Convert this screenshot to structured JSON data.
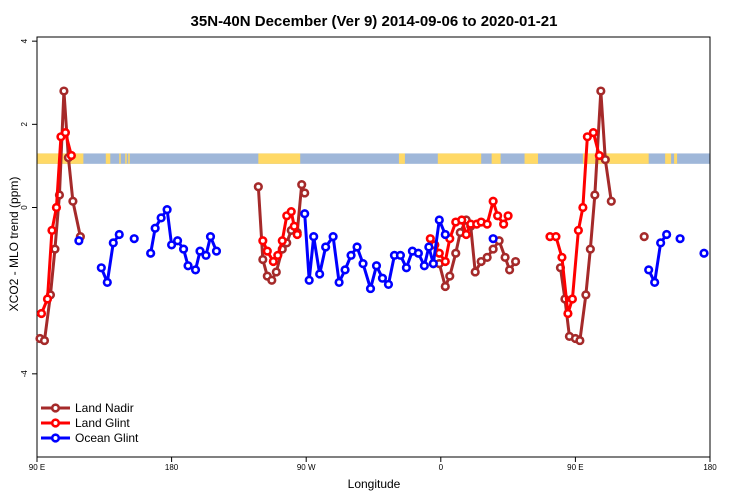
{
  "chart_data": {
    "type": "line",
    "title": "35N-40N December (Ver 9)   2014-09-06 to 2020-01-21",
    "xlabel": "Longitude",
    "ylabel": "XCO2 - MLO trend (ppm)",
    "xlim": [
      90,
      540
    ],
    "ylim": [
      -6,
      4.1
    ],
    "x_ticks": [
      {
        "value": 90,
        "label": "90 E"
      },
      {
        "value": 180,
        "label": "180"
      },
      {
        "value": 270,
        "label": "90 W"
      },
      {
        "value": 360,
        "label": "0"
      },
      {
        "value": 450,
        "label": "90 E"
      },
      {
        "value": 540,
        "label": "180"
      }
    ],
    "y_ticks": [
      {
        "value": 4,
        "label": "4"
      },
      {
        "value": 2,
        "label": "2"
      },
      {
        "value": 0,
        "label": "0"
      },
      {
        "value": -4,
        "label": "-4"
      }
    ],
    "legend_position": "bottom-left",
    "colors": {
      "land_nadir": "#a52a2a",
      "land_glint": "#ff0000",
      "ocean_glint": "#0000ff",
      "band_land": "#ffd966",
      "band_ocean": "#9fb7d9"
    },
    "surface_band": {
      "y_range": [
        1.05,
        1.3
      ],
      "land_segments": [
        [
          90,
          121
        ],
        [
          136,
          139
        ],
        [
          145,
          146
        ],
        [
          149,
          150
        ],
        [
          151,
          152
        ],
        [
          238,
          266
        ],
        [
          332,
          336
        ],
        [
          358,
          387
        ],
        [
          394,
          400
        ],
        [
          416,
          425
        ],
        [
          455,
          499
        ],
        [
          510,
          514
        ],
        [
          516,
          518
        ],
        [
          540,
          541
        ]
      ]
    },
    "series": [
      {
        "name": "Land Nadir",
        "key": "land_nadir",
        "segments": [
          [
            [
              92,
              -3.15
            ],
            [
              95,
              -3.2
            ],
            [
              99,
              -2.1
            ],
            [
              102,
              -1.0
            ],
            [
              105,
              0.3
            ],
            [
              108,
              2.8
            ],
            [
              111,
              1.2
            ],
            [
              114,
              0.15
            ],
            [
              119,
              -0.7
            ]
          ],
          [
            [
              238,
              0.5
            ],
            [
              241,
              -1.25
            ],
            [
              244,
              -1.65
            ],
            [
              247,
              -1.75
            ],
            [
              250,
              -1.55
            ],
            [
              254,
              -1.0
            ],
            [
              257,
              -0.85
            ],
            [
              260,
              -0.55
            ],
            [
              264,
              -0.6
            ],
            [
              267,
              0.55
            ],
            [
              269,
              0.35
            ]
          ],
          [
            [
              355,
              -1.35
            ],
            [
              359,
              -1.35
            ],
            [
              363,
              -1.9
            ],
            [
              366,
              -1.65
            ],
            [
              370,
              -1.1
            ],
            [
              373,
              -0.6
            ],
            [
              377,
              -0.3
            ],
            [
              380,
              -0.45
            ],
            [
              383,
              -1.55
            ],
            [
              387,
              -1.3
            ],
            [
              391,
              -1.2
            ],
            [
              395,
              -1.0
            ],
            [
              399,
              -0.8
            ],
            [
              403,
              -1.2
            ],
            [
              406,
              -1.5
            ],
            [
              410,
              -1.3
            ]
          ],
          [
            [
              440,
              -1.45
            ],
            [
              443,
              -2.2
            ],
            [
              446,
              -3.1
            ],
            [
              450,
              -3.15
            ],
            [
              453,
              -3.2
            ],
            [
              457,
              -2.1
            ],
            [
              460,
              -1.0
            ],
            [
              463,
              0.3
            ],
            [
              467,
              2.8
            ],
            [
              470,
              1.15
            ],
            [
              474,
              0.15
            ]
          ],
          [
            [
              496,
              -0.7
            ]
          ]
        ]
      },
      {
        "name": "Land Glint",
        "key": "land_glint",
        "segments": [
          [
            [
              93,
              -2.55
            ],
            [
              97,
              -2.2
            ],
            [
              100,
              -0.55
            ],
            [
              103,
              0.0
            ],
            [
              106,
              1.7
            ],
            [
              109,
              1.8
            ],
            [
              113,
              1.25
            ]
          ],
          [
            [
              241,
              -0.8
            ],
            [
              244,
              -1.05
            ],
            [
              248,
              -1.3
            ],
            [
              251,
              -1.15
            ],
            [
              254,
              -0.8
            ],
            [
              257,
              -0.2
            ],
            [
              260,
              -0.1
            ],
            [
              262,
              -0.45
            ],
            [
              264,
              -0.65
            ]
          ],
          [
            [
              353,
              -0.75
            ],
            [
              356,
              -0.9
            ],
            [
              359,
              -1.1
            ],
            [
              363,
              -1.3
            ],
            [
              366,
              -0.75
            ],
            [
              370,
              -0.35
            ],
            [
              374,
              -0.3
            ],
            [
              377,
              -0.65
            ],
            [
              380,
              -0.4
            ],
            [
              384,
              -0.4
            ],
            [
              387,
              -0.35
            ],
            [
              391,
              -0.4
            ],
            [
              395,
              0.15
            ],
            [
              398,
              -0.2
            ],
            [
              402,
              -0.4
            ],
            [
              405,
              -0.2
            ]
          ],
          [
            [
              433,
              -0.7
            ],
            [
              437,
              -0.7
            ],
            [
              441,
              -1.2
            ],
            [
              445,
              -2.55
            ],
            [
              448,
              -2.2
            ],
            [
              452,
              -0.55
            ],
            [
              455,
              0.0
            ],
            [
              458,
              1.7
            ],
            [
              462,
              1.8
            ],
            [
              466,
              1.25
            ]
          ]
        ]
      },
      {
        "name": "Ocean Glint",
        "key": "ocean_glint",
        "segments": [
          [
            [
              133,
              -1.45
            ],
            [
              137,
              -1.8
            ],
            [
              141,
              -0.85
            ],
            [
              145,
              -0.65
            ]
          ],
          [
            [
              118,
              -0.8
            ]
          ],
          [
            [
              155,
              -0.75
            ]
          ],
          [
            [
              166,
              -1.1
            ],
            [
              169,
              -0.5
            ],
            [
              173,
              -0.25
            ],
            [
              177,
              -0.05
            ],
            [
              180,
              -0.9
            ],
            [
              184,
              -0.8
            ],
            [
              188,
              -1.0
            ],
            [
              191,
              -1.4
            ],
            [
              196,
              -1.5
            ],
            [
              199,
              -1.05
            ],
            [
              203,
              -1.15
            ],
            [
              206,
              -0.7
            ],
            [
              210,
              -1.05
            ]
          ],
          [
            [
              269,
              -0.15
            ],
            [
              272,
              -1.75
            ],
            [
              275,
              -0.7
            ],
            [
              279,
              -1.6
            ],
            [
              283,
              -0.95
            ],
            [
              288,
              -0.7
            ],
            [
              292,
              -1.8
            ],
            [
              296,
              -1.5
            ],
            [
              300,
              -1.15
            ],
            [
              304,
              -0.95
            ],
            [
              308,
              -1.35
            ],
            [
              313,
              -1.95
            ],
            [
              317,
              -1.4
            ],
            [
              321,
              -1.7
            ],
            [
              325,
              -1.85
            ],
            [
              329,
              -1.15
            ],
            [
              333,
              -1.15
            ],
            [
              337,
              -1.45
            ],
            [
              341,
              -1.05
            ],
            [
              345,
              -1.1
            ],
            [
              349,
              -1.4
            ],
            [
              352,
              -0.95
            ],
            [
              355,
              -1.35
            ],
            [
              359,
              -0.3
            ],
            [
              363,
              -0.65
            ]
          ],
          [
            [
              395,
              -0.75
            ]
          ],
          [
            [
              499,
              -1.5
            ],
            [
              503,
              -1.8
            ],
            [
              507,
              -0.85
            ],
            [
              511,
              -0.65
            ]
          ],
          [
            [
              520,
              -0.75
            ]
          ],
          [
            [
              536,
              -1.1
            ]
          ]
        ]
      }
    ]
  }
}
